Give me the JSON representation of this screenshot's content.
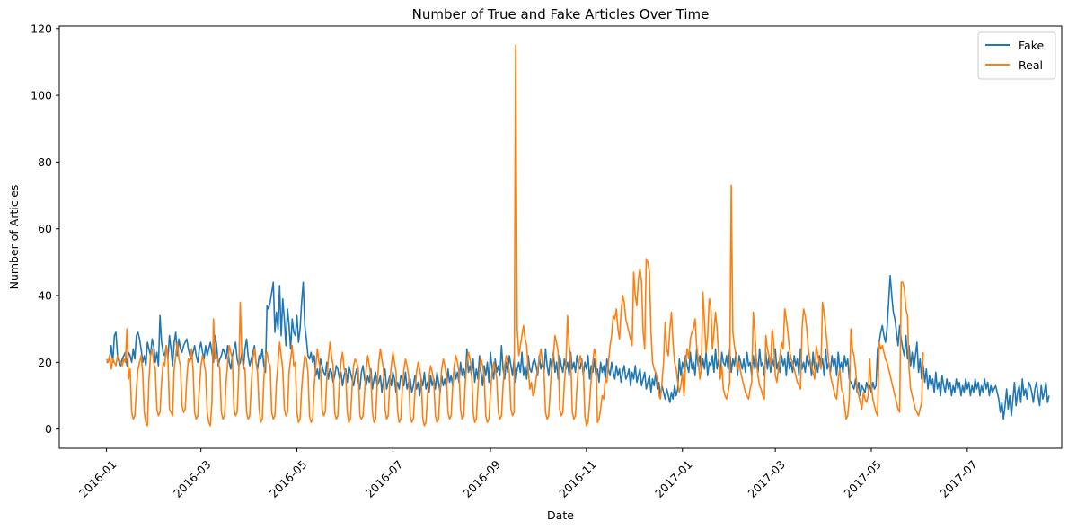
{
  "chart_data": {
    "type": "line",
    "title": "Number of True and Fake Articles Over Time",
    "xlabel": "Date",
    "ylabel": "Number of Articles",
    "x_start": "2016-01-01",
    "x_end": "2017-07-31",
    "xlim": [
      "2015-12-02",
      "2017-08-30"
    ],
    "ylim": [
      -5.75,
      120.75
    ],
    "y_ticks": [
      0,
      20,
      40,
      60,
      80,
      100,
      120
    ],
    "x_ticks": [
      "2016-01",
      "2016-03",
      "2016-05",
      "2016-07",
      "2016-09",
      "2016-11",
      "2017-01",
      "2017-03",
      "2017-05",
      "2017-07"
    ],
    "grid": false,
    "legend": "top-right",
    "colors": {
      "fake": "#1f77b4",
      "real": "#ff7f0e"
    },
    "series": [
      {
        "name": "Fake",
        "values": [
          20,
          20,
          21,
          25,
          20,
          28,
          29,
          22,
          20,
          19,
          21,
          22,
          23,
          19,
          23,
          22,
          20,
          24,
          21,
          28,
          29,
          27,
          24,
          20,
          22,
          19,
          26,
          24,
          22,
          27,
          25,
          20,
          23,
          19,
          34,
          26,
          23,
          22,
          25,
          21,
          28,
          24,
          19,
          26,
          29,
          22,
          27,
          24,
          23,
          25,
          26,
          27,
          24,
          22,
          21,
          23,
          25,
          22,
          20,
          24,
          26,
          23,
          21,
          25,
          22,
          24,
          26,
          23,
          20,
          28,
          25,
          19,
          21,
          22,
          24,
          23,
          21,
          25,
          20,
          18,
          22,
          24,
          26,
          21,
          19,
          20,
          23,
          18,
          24,
          27,
          22,
          19,
          21,
          23,
          25,
          20,
          18,
          22,
          21,
          24,
          19,
          17,
          37,
          36,
          38,
          41,
          44,
          29,
          35,
          30,
          43,
          28,
          39,
          33,
          25,
          36,
          31,
          24,
          33,
          29,
          28,
          34,
          26,
          30,
          38,
          44,
          31,
          27,
          22,
          21,
          23,
          20,
          22,
          16,
          18,
          15,
          21,
          19,
          17,
          16,
          20,
          15,
          18,
          17,
          14,
          16,
          19,
          18,
          15,
          17,
          13,
          16,
          18,
          14,
          19,
          17,
          15,
          13,
          16,
          18,
          14,
          12,
          17,
          19,
          15,
          13,
          16,
          14,
          18,
          12,
          15,
          17,
          13,
          14,
          16,
          11,
          15,
          18,
          12,
          14,
          16,
          13,
          17,
          15,
          11,
          14,
          12,
          16,
          15,
          13,
          17,
          12,
          14,
          15,
          11,
          13,
          16,
          12,
          14,
          10,
          15,
          13,
          17,
          12,
          14,
          11,
          16,
          13,
          15,
          12,
          17,
          14,
          11,
          16,
          13,
          15,
          12,
          18,
          14,
          16,
          13,
          19,
          15,
          17,
          14,
          20,
          16,
          18,
          15,
          24,
          17,
          19,
          16,
          21,
          14,
          18,
          15,
          22,
          17,
          13,
          19,
          16,
          20,
          14,
          23,
          18,
          15,
          21,
          17,
          19,
          16,
          25,
          18,
          15,
          20,
          17,
          22,
          19,
          16,
          21,
          14,
          18,
          20,
          17,
          23,
          16,
          19,
          15,
          22,
          18,
          17,
          20,
          21,
          19,
          16,
          22,
          18,
          20,
          17,
          24,
          19,
          16,
          21,
          18,
          23,
          17,
          20,
          15,
          22,
          19,
          17,
          21,
          18,
          20,
          16,
          23,
          18,
          20,
          17,
          22,
          19,
          18,
          21,
          16,
          20,
          18,
          22,
          15,
          19,
          17,
          21,
          16,
          18,
          14,
          20,
          17,
          19,
          15,
          21,
          18,
          16,
          20,
          17,
          15,
          19,
          16,
          18,
          14,
          17,
          19,
          15,
          16,
          18,
          13,
          17,
          15,
          19,
          14,
          16,
          18,
          13,
          15,
          17,
          12,
          14,
          16,
          11,
          15,
          13,
          17,
          12,
          14,
          10,
          13,
          11,
          9,
          12,
          10,
          8,
          11,
          9,
          13,
          10,
          12,
          21,
          16,
          20,
          18,
          22,
          19,
          17,
          23,
          18,
          20,
          16,
          24,
          19,
          22,
          17,
          21,
          18,
          23,
          16,
          20,
          19,
          22,
          17,
          24,
          18,
          21,
          16,
          23,
          20,
          19,
          22,
          18,
          24,
          17,
          21,
          19,
          23,
          16,
          22,
          20,
          18,
          21,
          17,
          23,
          19,
          20,
          16,
          22,
          18,
          21,
          17,
          24,
          19,
          20,
          16,
          23,
          18,
          22,
          17,
          21,
          19,
          24,
          18,
          20,
          17,
          22,
          19,
          21,
          16,
          23,
          18,
          20,
          17,
          22,
          19,
          21,
          16,
          24,
          18,
          20,
          17,
          22,
          19,
          21,
          16,
          23,
          18,
          20,
          17,
          22,
          19,
          21,
          16,
          24,
          18,
          20,
          17,
          22,
          19,
          21,
          16,
          23,
          18,
          20,
          17,
          22,
          19,
          21,
          15,
          14,
          13,
          12,
          15,
          11,
          14,
          10,
          13,
          12,
          11,
          14,
          12,
          13,
          11,
          14,
          12,
          13,
          24,
          26,
          29,
          31,
          28,
          26,
          30,
          38,
          46,
          40,
          35,
          33,
          29,
          25,
          31,
          27,
          24,
          22,
          28,
          21,
          25,
          19,
          23,
          18,
          22,
          26,
          17,
          21,
          15,
          19,
          14,
          18,
          12,
          16,
          13,
          15,
          11,
          17,
          12,
          14,
          10,
          16,
          13,
          11,
          15,
          12,
          14,
          10,
          13,
          11,
          15,
          12,
          14,
          10,
          13,
          11,
          15,
          12,
          14,
          10,
          13,
          11,
          15,
          12,
          14,
          10,
          13,
          11,
          15,
          12,
          14,
          10,
          13,
          11,
          12,
          13,
          11,
          9,
          5,
          8,
          3,
          7,
          12,
          6,
          10,
          4,
          9,
          14,
          7,
          11,
          13,
          8,
          15,
          10,
          12,
          9,
          14,
          13,
          11,
          8,
          12,
          14,
          10,
          7,
          13,
          9,
          11,
          14,
          8,
          10
        ]
      },
      {
        "name": "Real",
        "values": [
          21,
          20,
          22,
          18,
          21,
          20,
          19,
          22,
          21,
          20,
          19,
          21,
          20,
          30,
          15,
          18,
          5,
          3,
          4,
          12,
          18,
          20,
          22,
          17,
          5,
          2,
          1,
          15,
          22,
          24,
          20,
          18,
          6,
          4,
          5,
          14,
          20,
          19,
          25,
          22,
          6,
          5,
          4,
          18,
          22,
          26,
          21,
          19,
          7,
          5,
          6,
          15,
          21,
          20,
          24,
          18,
          5,
          3,
          4,
          12,
          19,
          22,
          20,
          17,
          5,
          2,
          1,
          8,
          33,
          21,
          22,
          20,
          18,
          5,
          3,
          4,
          14,
          20,
          25,
          23,
          21,
          6,
          4,
          5,
          16,
          38,
          22,
          19,
          18,
          5,
          3,
          4,
          13,
          21,
          24,
          20,
          17,
          6,
          2,
          3,
          15,
          22,
          23,
          20,
          19,
          5,
          3,
          4,
          14,
          20,
          26,
          22,
          18,
          6,
          4,
          5,
          17,
          21,
          25,
          19,
          20,
          5,
          2,
          3,
          12,
          18,
          22,
          21,
          17,
          4,
          2,
          3,
          13,
          19,
          24,
          20,
          18,
          6,
          4,
          5,
          15,
          21,
          26,
          22,
          19,
          5,
          3,
          4,
          14,
          20,
          23,
          18,
          17,
          5,
          2,
          3,
          12,
          19,
          21,
          20,
          18,
          4,
          3,
          4,
          11,
          18,
          22,
          19,
          16,
          5,
          2,
          3,
          13,
          20,
          24,
          21,
          18,
          6,
          3,
          4,
          14,
          19,
          23,
          20,
          17,
          5,
          2,
          3,
          12,
          18,
          21,
          19,
          16,
          4,
          2,
          3,
          11,
          17,
          20,
          18,
          15,
          3,
          1,
          2,
          10,
          16,
          19,
          17,
          14,
          4,
          2,
          3,
          12,
          18,
          21,
          19,
          16,
          5,
          3,
          4,
          13,
          19,
          22,
          20,
          17,
          6,
          3,
          4,
          14,
          20,
          23,
          21,
          18,
          5,
          2,
          3,
          12,
          18,
          21,
          19,
          16,
          4,
          2,
          3,
          11,
          17,
          20,
          18,
          15,
          5,
          3,
          4,
          13,
          19,
          22,
          20,
          17,
          6,
          4,
          5,
          115,
          30,
          22,
          25,
          28,
          31,
          27,
          25,
          18,
          12,
          14,
          10,
          11,
          15,
          18,
          21,
          24,
          20,
          17,
          5,
          3,
          4,
          12,
          19,
          22,
          28,
          26,
          23,
          6,
          4,
          5,
          14,
          20,
          34,
          25,
          21,
          5,
          3,
          4,
          13,
          19,
          22,
          20,
          18,
          4,
          1,
          2,
          8,
          15,
          20,
          24,
          22,
          2,
          3,
          6,
          10,
          9,
          15,
          14,
          20,
          25,
          28,
          34,
          33,
          36,
          30,
          27,
          35,
          40,
          38,
          33,
          31,
          29,
          27,
          25,
          47,
          40,
          37,
          45,
          48,
          44,
          29,
          24,
          51,
          50,
          47,
          29,
          20,
          18,
          17,
          15,
          10,
          9,
          14,
          20,
          32,
          24,
          22,
          30,
          35,
          26,
          20,
          18,
          14,
          11,
          13,
          17,
          10,
          20,
          24,
          21,
          27,
          29,
          30,
          33,
          25,
          21,
          15,
          18,
          41,
          32,
          23,
          28,
          39,
          37,
          24,
          29,
          35,
          30,
          22,
          15,
          19,
          12,
          10,
          9,
          11,
          14,
          73,
          29,
          25,
          22,
          18,
          20,
          17,
          15,
          13,
          11,
          10,
          9,
          12,
          14,
          35,
          29,
          20,
          16,
          13,
          12,
          10,
          9,
          28,
          24,
          22,
          19,
          30,
          26,
          16,
          14,
          18,
          22,
          26,
          24,
          36,
          33,
          29,
          24,
          21,
          20,
          18,
          16,
          14,
          13,
          12,
          30,
          36,
          34,
          30,
          24,
          21,
          19,
          17,
          15,
          25,
          22,
          20,
          18,
          38,
          35,
          30,
          25,
          20,
          16,
          14,
          12,
          10,
          9,
          15,
          18,
          12,
          11,
          7,
          3,
          4,
          9,
          30,
          24,
          22,
          18,
          12,
          10,
          8,
          6,
          11,
          9,
          8,
          10,
          21,
          13,
          9,
          7,
          5,
          4,
          26,
          24,
          25,
          23,
          21,
          20,
          18,
          16,
          14,
          12,
          10,
          8,
          6,
          5,
          44,
          44,
          42,
          36,
          34,
          18,
          12,
          10,
          8,
          6,
          5,
          4,
          6,
          8,
          23
        ]
      }
    ]
  }
}
